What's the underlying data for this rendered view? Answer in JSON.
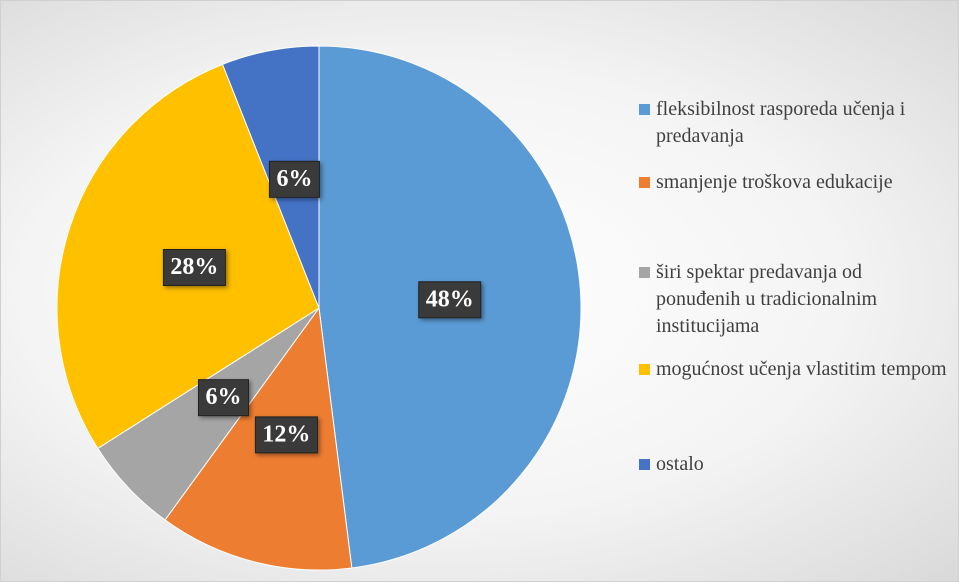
{
  "chart_data": {
    "type": "pie",
    "categories": [
      "fleksibilnost rasporeda učenja i predavanja",
      "smanjenje troškova edukacije",
      "širi spektar predavanja od ponuđenih u tradicionalnim institucijama",
      "mogućnost učenja vlastitim tempom",
      "ostalo"
    ],
    "values": [
      48,
      12,
      6,
      28,
      6
    ],
    "value_labels": [
      "48%",
      "12%",
      "6%",
      "28%",
      "6%"
    ],
    "colors": [
      "#5b9bd5",
      "#ed7d31",
      "#a5a5a5",
      "#ffc000",
      "#4472c4"
    ],
    "legend": "right"
  }
}
